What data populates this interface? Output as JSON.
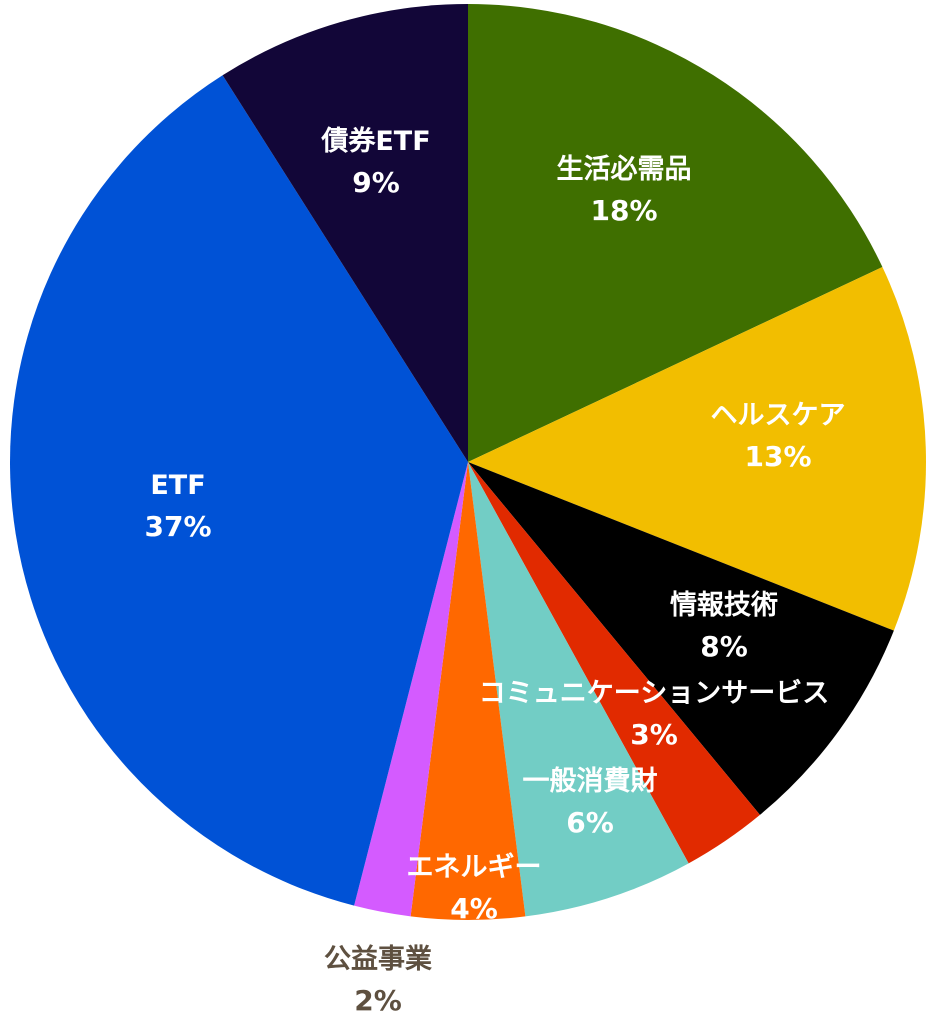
{
  "chart_data": {
    "type": "pie",
    "start_angle_deg": 0,
    "direction": "clockwise",
    "slices": [
      {
        "label": "生活必需品",
        "value": 18,
        "percent_label": "18%",
        "color": "#3F6F00",
        "text_color": "#FFFFFF"
      },
      {
        "label": "ヘルスケア",
        "value": 13,
        "percent_label": "13%",
        "color": "#F2BE00",
        "text_color": "#FFFFFF"
      },
      {
        "label": "情報技術",
        "value": 8,
        "percent_label": "8%",
        "color": "#000000",
        "text_color": "#FFFFFF"
      },
      {
        "label": "コミュニケーションサービス",
        "value": 3,
        "percent_label": "3%",
        "color": "#E12A00",
        "text_color": "#FFFFFF"
      },
      {
        "label": "一般消費財",
        "value": 6,
        "percent_label": "6%",
        "color": "#72CDC5",
        "text_color": "#FFFFFF"
      },
      {
        "label": "エネルギー",
        "value": 4,
        "percent_label": "4%",
        "color": "#FF6800",
        "text_color": "#FFFFFF"
      },
      {
        "label": "公益事業",
        "value": 2,
        "percent_label": "2%",
        "color": "#D45BFF",
        "text_color": "#5E5040"
      },
      {
        "label": "ETF",
        "value": 37,
        "percent_label": "37%",
        "color": "#0052D6",
        "text_color": "#FFFFFF"
      },
      {
        "label": "債券ETF",
        "value": 9,
        "percent_label": "9%",
        "color": "#120638",
        "text_color": "#FFFFFF"
      }
    ]
  }
}
